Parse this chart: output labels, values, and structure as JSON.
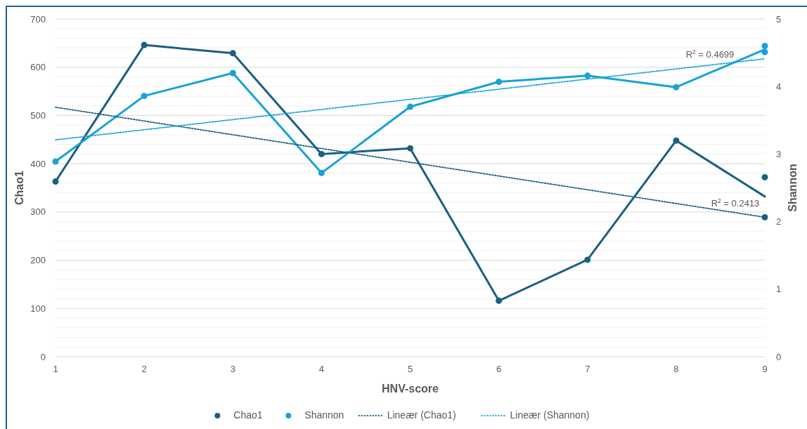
{
  "chart_data": {
    "type": "line",
    "xlabel": "HNV-score",
    "ylabel": "Chao1",
    "y2label": "Shannon",
    "xlim": [
      1,
      9
    ],
    "xticks": [
      1,
      2,
      3,
      4,
      5,
      6,
      7,
      8,
      9
    ],
    "ylim": [
      0,
      700
    ],
    "yticks": [
      0,
      {
        "value": 20,
        "label": null
      },
      {
        "value": 40,
        "label": null
      },
      {
        "value": 60,
        "label": null
      },
      {
        "value": 80,
        "label": null
      },
      100,
      {
        "value": 120,
        "label": null
      },
      {
        "value": 140,
        "label": null
      },
      {
        "value": 160,
        "label": null
      },
      {
        "value": 180,
        "label": null
      },
      200,
      {
        "value": 220,
        "label": null
      },
      {
        "value": 240,
        "label": null
      },
      {
        "value": 260,
        "label": null
      },
      {
        "value": 280,
        "label": null
      },
      300,
      {
        "value": 320,
        "label": null
      },
      {
        "value": 340,
        "label": null
      },
      {
        "value": 360,
        "label": null
      },
      {
        "value": 380,
        "label": null
      },
      400,
      {
        "value": 420,
        "label": null
      },
      {
        "value": 440,
        "label": null
      },
      {
        "value": 460,
        "label": null
      },
      {
        "value": 480,
        "label": null
      },
      500,
      {
        "value": 520,
        "label": null
      },
      {
        "value": 540,
        "label": null
      },
      {
        "value": 560,
        "label": null
      },
      {
        "value": 580,
        "label": null
      },
      600,
      {
        "value": 620,
        "label": null
      },
      {
        "value": 640,
        "label": null
      },
      {
        "value": 660,
        "label": null
      },
      {
        "value": 680,
        "label": null
      },
      700
    ],
    "y2lim": [
      0,
      5
    ],
    "y2ticks": [
      0,
      1,
      2,
      3,
      4,
      5
    ],
    "grid": "y",
    "legend": "bottom",
    "marker": "circle",
    "series": [
      {
        "color": "#1b5f82",
        "marker": "none",
        "x": [
          1,
          2,
          3,
          4,
          5,
          6,
          7,
          8,
          9
        ],
        "values": [
          363,
          646,
          629,
          420,
          432,
          116,
          201,
          448,
          332
        ]
      },
      {
        "type": "scatter",
        "name": "Chao1",
        "color": "#1b5f82",
        "x": [
          1,
          2,
          3,
          4,
          5,
          6,
          7,
          8,
          9,
          9
        ],
        "values": [
          363,
          646,
          629,
          420,
          432,
          116,
          201,
          448,
          372,
          289
        ]
      },
      {
        "color": "#18a2d6",
        "marker": "none",
        "axis": "y2",
        "x": [
          1,
          2,
          3,
          4,
          5,
          6,
          7,
          8,
          9
        ],
        "values": [
          2.89,
          3.86,
          4.2,
          2.72,
          3.7,
          4.07,
          4.16,
          3.99,
          4.55
        ]
      },
      {
        "type": "scatter",
        "name": "Shannon",
        "color": "#18a2d6",
        "axis": "y2",
        "x": [
          1,
          2,
          3,
          4,
          5,
          6,
          7,
          8,
          9,
          9
        ],
        "values": [
          2.89,
          3.86,
          4.2,
          2.72,
          3.7,
          4.07,
          4.16,
          3.99,
          4.6,
          4.51
        ]
      },
      {
        "name": "Lineær (Chao1)",
        "color": "#1b5f82",
        "marker": "none",
        "line_style": "dotted",
        "x": [
          1,
          9
        ],
        "values": [
          517,
          289
        ]
      },
      {
        "name": "Lineær (Shannon)",
        "color": "#18a2d6",
        "marker": "none",
        "line_style": "dotted",
        "axis": "y2",
        "x": [
          1,
          9
        ],
        "values": [
          3.21,
          4.41
        ]
      }
    ],
    "annotations": [
      "R$^{2}$ = 0.4699",
      "R$^{2}$ = 0.2413"
    ]
  }
}
